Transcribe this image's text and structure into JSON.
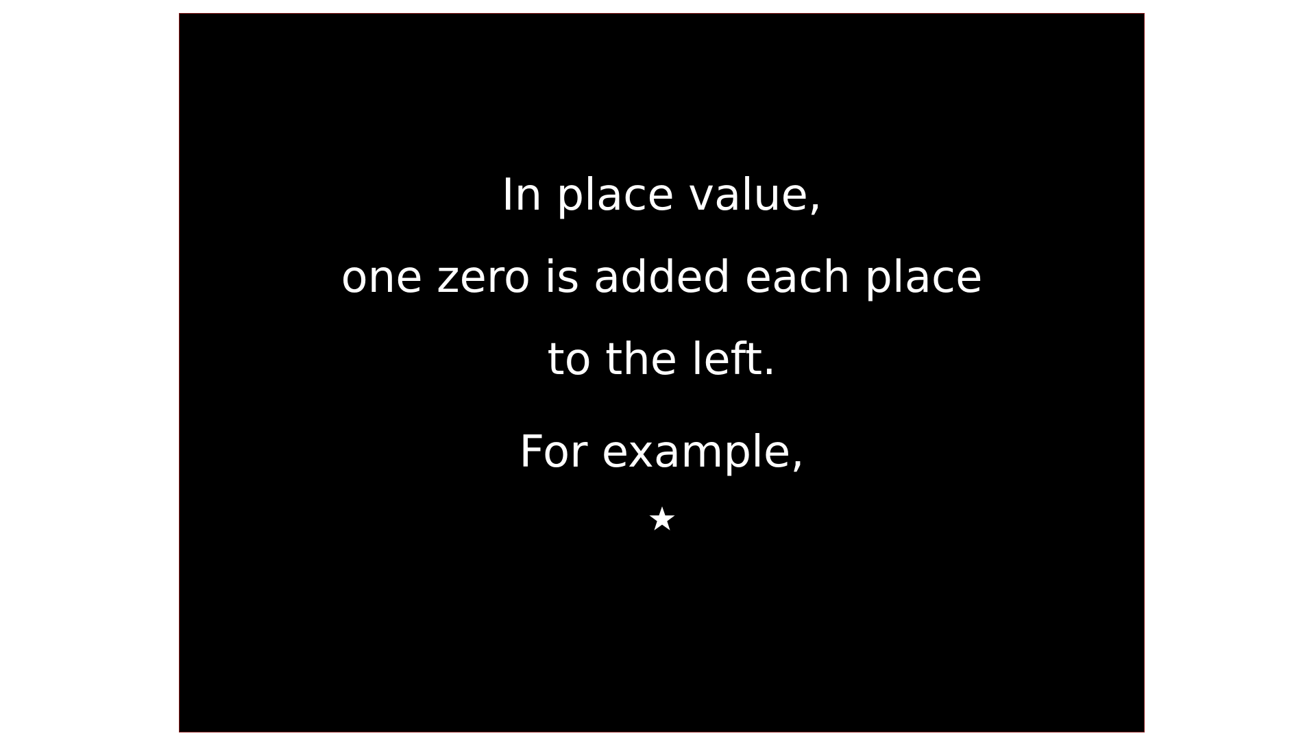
{
  "slide": {
    "lines": [
      "In place value,",
      "one zero is added each place",
      "to the left.",
      "For example,"
    ],
    "icon": "star-icon",
    "colors": {
      "background": "#000000",
      "text": "#ffffff",
      "page": "#ffffff",
      "border": "#8a1c1c"
    }
  }
}
